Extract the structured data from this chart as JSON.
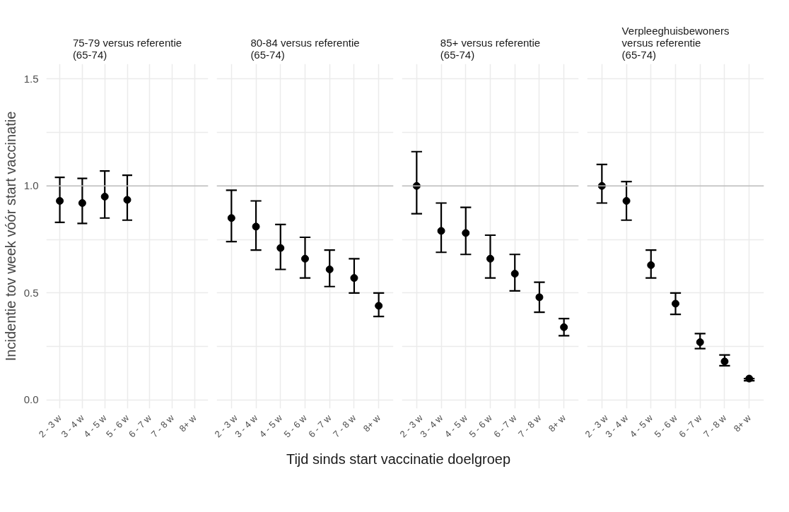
{
  "chart_data": [
    {
      "type": "scatter",
      "title": "75-79 versus referentie\n(65-74)",
      "ylabel": "Incidentie tov week vóór start vaccinatie",
      "xlabel": "Tijd sinds start vaccinatie doelgroep",
      "categories": [
        "2 - 3 w",
        "3 - 4 w",
        "4 - 5 w",
        "5 - 6 w",
        "6 - 7 w",
        "7 - 8 w",
        "8+ w"
      ],
      "series": [
        {
          "color": "#000000",
          "values": [
            0.93,
            0.92,
            0.95,
            0.935,
            null,
            null,
            null
          ],
          "errors": [
            [
              0.83,
              1.04
            ],
            [
              0.825,
              1.035
            ],
            [
              0.85,
              1.07
            ],
            [
              0.84,
              1.05
            ],
            null,
            null,
            null
          ]
        }
      ],
      "ylim": [
        -0.04,
        1.57
      ],
      "yticks": [
        {
          "value": 0,
          "label": "0.0"
        },
        {
          "value": 0.25,
          "label": null
        },
        {
          "value": 0.5,
          "label": "0.5"
        },
        {
          "value": 0.75,
          "label": null
        },
        {
          "value": 1.0,
          "label": "1.0"
        },
        {
          "value": 1.25,
          "label": null
        },
        {
          "value": 1.5,
          "label": "1.5"
        }
      ],
      "ref_lines": [
        {
          "axis": "y",
          "value": 1.0,
          "color": "#bdbdbd"
        }
      ],
      "grid": true,
      "marker": "circle"
    },
    {
      "type": "scatter",
      "title": "80-84 versus referentie\n(65-74)",
      "categories": [
        "2 - 3 w",
        "3 - 4 w",
        "4 - 5 w",
        "5 - 6 w",
        "6 - 7 w",
        "7 - 8 w",
        "8+ w"
      ],
      "series": [
        {
          "color": "#000000",
          "values": [
            0.85,
            0.81,
            0.71,
            0.66,
            0.61,
            0.57,
            0.44
          ],
          "errors": [
            [
              0.74,
              0.98
            ],
            [
              0.7,
              0.93
            ],
            [
              0.61,
              0.82
            ],
            [
              0.57,
              0.76
            ],
            [
              0.53,
              0.7
            ],
            [
              0.5,
              0.66
            ],
            [
              0.39,
              0.5
            ]
          ]
        }
      ],
      "ylim": [
        -0.04,
        1.57
      ],
      "yticks": [
        0,
        {
          "value": 0.25,
          "label": null
        },
        0.5,
        {
          "value": 0.75,
          "label": null
        },
        1.0,
        {
          "value": 1.25,
          "label": null
        },
        1.5
      ],
      "ref_lines": [
        {
          "axis": "y",
          "value": 1.0,
          "color": "#bdbdbd"
        }
      ],
      "grid": true,
      "marker": "circle",
      "tick_labels": "x"
    },
    {
      "type": "scatter",
      "title": "85+ versus referentie\n(65-74)",
      "categories": [
        "2 - 3 w",
        "3 - 4 w",
        "4 - 5 w",
        "5 - 6 w",
        "6 - 7 w",
        "7 - 8 w",
        "8+ w"
      ],
      "series": [
        {
          "color": "#000000",
          "values": [
            1.0,
            0.79,
            0.78,
            0.66,
            0.59,
            0.48,
            0.34
          ],
          "errors": [
            [
              0.87,
              1.16
            ],
            [
              0.69,
              0.92
            ],
            [
              0.68,
              0.9
            ],
            [
              0.57,
              0.77
            ],
            [
              0.51,
              0.68
            ],
            [
              0.41,
              0.55
            ],
            [
              0.3,
              0.38
            ]
          ]
        }
      ],
      "ylim": [
        -0.04,
        1.57
      ],
      "yticks": [
        0,
        {
          "value": 0.25,
          "label": null
        },
        0.5,
        {
          "value": 0.75,
          "label": null
        },
        1.0,
        {
          "value": 1.25,
          "label": null
        },
        1.5
      ],
      "ref_lines": [
        {
          "axis": "y",
          "value": 1.0,
          "color": "#bdbdbd"
        }
      ],
      "grid": true,
      "marker": "circle",
      "tick_labels": "x"
    },
    {
      "type": "scatter",
      "title": "Verpleeghuisbewoners\nversus referentie\n(65-74)",
      "categories": [
        "2 - 3 w",
        "3 - 4 w",
        "4 - 5 w",
        "5 - 6 w",
        "6 - 7 w",
        "7 - 8 w",
        "8+ w"
      ],
      "series": [
        {
          "color": "#000000",
          "values": [
            1.0,
            0.93,
            0.63,
            0.45,
            0.27,
            0.18,
            0.1
          ],
          "errors": [
            [
              0.92,
              1.1
            ],
            [
              0.84,
              1.02
            ],
            [
              0.57,
              0.7
            ],
            [
              0.4,
              0.5
            ],
            [
              0.24,
              0.31
            ],
            [
              0.16,
              0.21
            ],
            [
              0.09,
              0.1
            ]
          ]
        }
      ],
      "ylim": [
        -0.04,
        1.57
      ],
      "yticks": [
        0,
        {
          "value": 0.25,
          "label": null
        },
        0.5,
        {
          "value": 0.75,
          "label": null
        },
        1.0,
        {
          "value": 1.25,
          "label": null
        },
        1.5
      ],
      "ref_lines": [
        {
          "axis": "y",
          "value": 1.0,
          "color": "#bdbdbd"
        }
      ],
      "grid": true,
      "marker": "circle",
      "tick_labels": "x"
    }
  ]
}
